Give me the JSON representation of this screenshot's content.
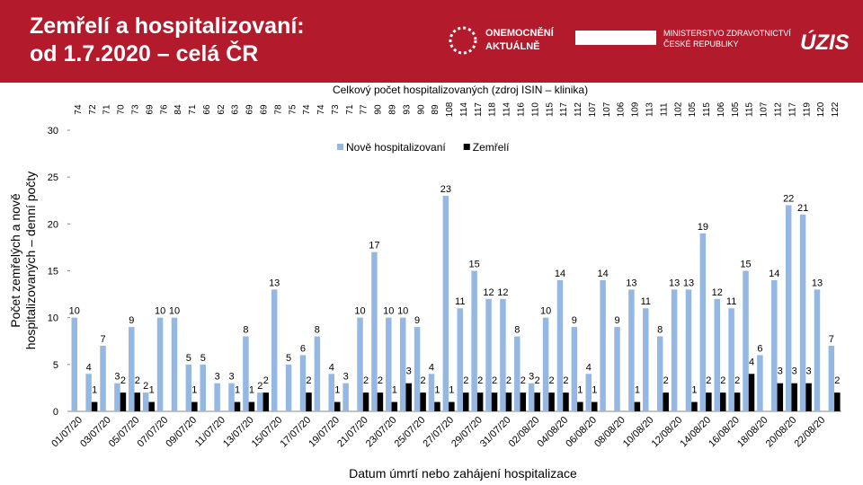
{
  "header": {
    "title_lines": [
      "Zemřelí a hospitalizovaní:",
      "od 1.7.2020 – celá ČR"
    ],
    "logo1_lines": [
      "ONEMOCNĚNÍ",
      "AKTUÁLNĚ"
    ],
    "logo2_lines": [
      "MINISTERSTVO ZDRAVOTNICTVÍ",
      "ČESKÉ REPUBLIKY"
    ],
    "logo3": "ÚZIS"
  },
  "chart_data": {
    "type": "bar",
    "title": "Celkový počet hospitalizovaných (zdroj ISIN – klinika)",
    "xlabel": "Datum úmrtí nebo zahájení hospitalizace",
    "ylabel_lines": [
      "Počet zemřelých a nově",
      "hospitalizovaných – denní počty"
    ],
    "ylim": [
      0,
      30
    ],
    "yticks": [
      0,
      5,
      10,
      15,
      20,
      25,
      30
    ],
    "legend": "top",
    "categories": [
      "01/07/20",
      null,
      "03/07/20",
      null,
      "05/07/20",
      null,
      "07/07/20",
      null,
      "09/07/20",
      null,
      "11/07/20",
      null,
      "13/07/20",
      null,
      "15/07/20",
      null,
      "17/07/20",
      null,
      "19/07/20",
      null,
      "21/07/20",
      null,
      "23/07/20",
      null,
      "25/07/20",
      null,
      "27/07/20",
      null,
      "29/07/20",
      null,
      "31/07/20",
      null,
      "02/08/20",
      null,
      "04/08/20",
      null,
      "06/08/20",
      null,
      "08/08/20",
      null,
      "10/08/20",
      null,
      "12/08/20",
      null,
      "14/08/20",
      null,
      "16/08/20",
      null,
      "18/08/20",
      null,
      "20/08/20",
      null,
      "22/08/20",
      null
    ],
    "series": [
      {
        "name": "Nově hospitalizovaní",
        "color": "#95b8e3",
        "values": [
          10,
          4,
          7,
          3,
          9,
          2,
          10,
          10,
          5,
          5,
          3,
          3,
          8,
          2,
          13,
          5,
          6,
          8,
          4,
          3,
          10,
          17,
          10,
          10,
          9,
          4,
          23,
          11,
          15,
          12,
          12,
          8,
          3,
          10,
          14,
          9,
          4,
          14,
          9,
          13,
          11,
          8,
          13,
          13,
          19,
          12,
          11,
          15,
          6,
          14,
          22,
          21,
          13,
          7
        ]
      },
      {
        "name": "Zemřelí",
        "color": "#000000",
        "values": [
          0,
          1,
          0,
          2,
          2,
          1,
          0,
          0,
          1,
          0,
          0,
          1,
          1,
          2,
          0,
          0,
          2,
          0,
          1,
          0,
          2,
          2,
          1,
          3,
          2,
          1,
          1,
          2,
          2,
          2,
          2,
          2,
          2,
          2,
          2,
          1,
          1,
          0,
          0,
          1,
          0,
          2,
          0,
          1,
          2,
          2,
          2,
          4,
          0,
          3,
          3,
          3,
          0,
          2
        ]
      }
    ],
    "totals": [
      74,
      72,
      71,
      70,
      73,
      69,
      76,
      84,
      71,
      66,
      62,
      63,
      69,
      69,
      78,
      75,
      74,
      74,
      73,
      71,
      77,
      90,
      89,
      93,
      90,
      89,
      108,
      114,
      117,
      118,
      114,
      116,
      110,
      115,
      117,
      112,
      107,
      107,
      106,
      109,
      113,
      111,
      102,
      105,
      115,
      106,
      105,
      115,
      107,
      112,
      117,
      119,
      120,
      122
    ]
  }
}
